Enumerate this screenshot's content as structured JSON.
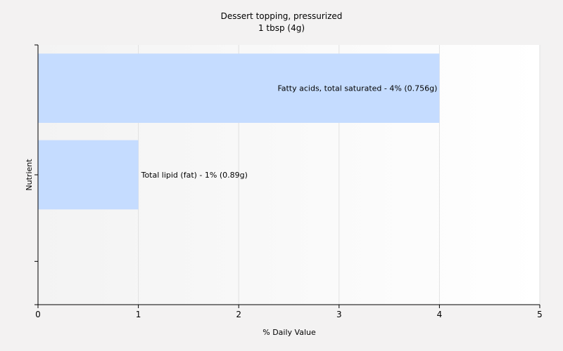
{
  "chart_data": {
    "type": "bar",
    "orientation": "horizontal",
    "title": "Dessert topping, pressurized",
    "subtitle": "1 tbsp (4g)",
    "xlabel": "% Daily Value",
    "ylabel": "Nutrient",
    "xlim": [
      0,
      5
    ],
    "x_ticks": [
      "0",
      "1",
      "2",
      "3",
      "4",
      "5"
    ],
    "grid": true,
    "bar_color": "#c5dcff",
    "bars": [
      {
        "category": "Fatty acids, total saturated",
        "value": 4,
        "label": "Fatty acids, total saturated - 4% (0.756g)"
      },
      {
        "category": "Total lipid (fat)",
        "value": 1,
        "label": "Total lipid (fat) - 1% (0.89g)"
      }
    ]
  }
}
